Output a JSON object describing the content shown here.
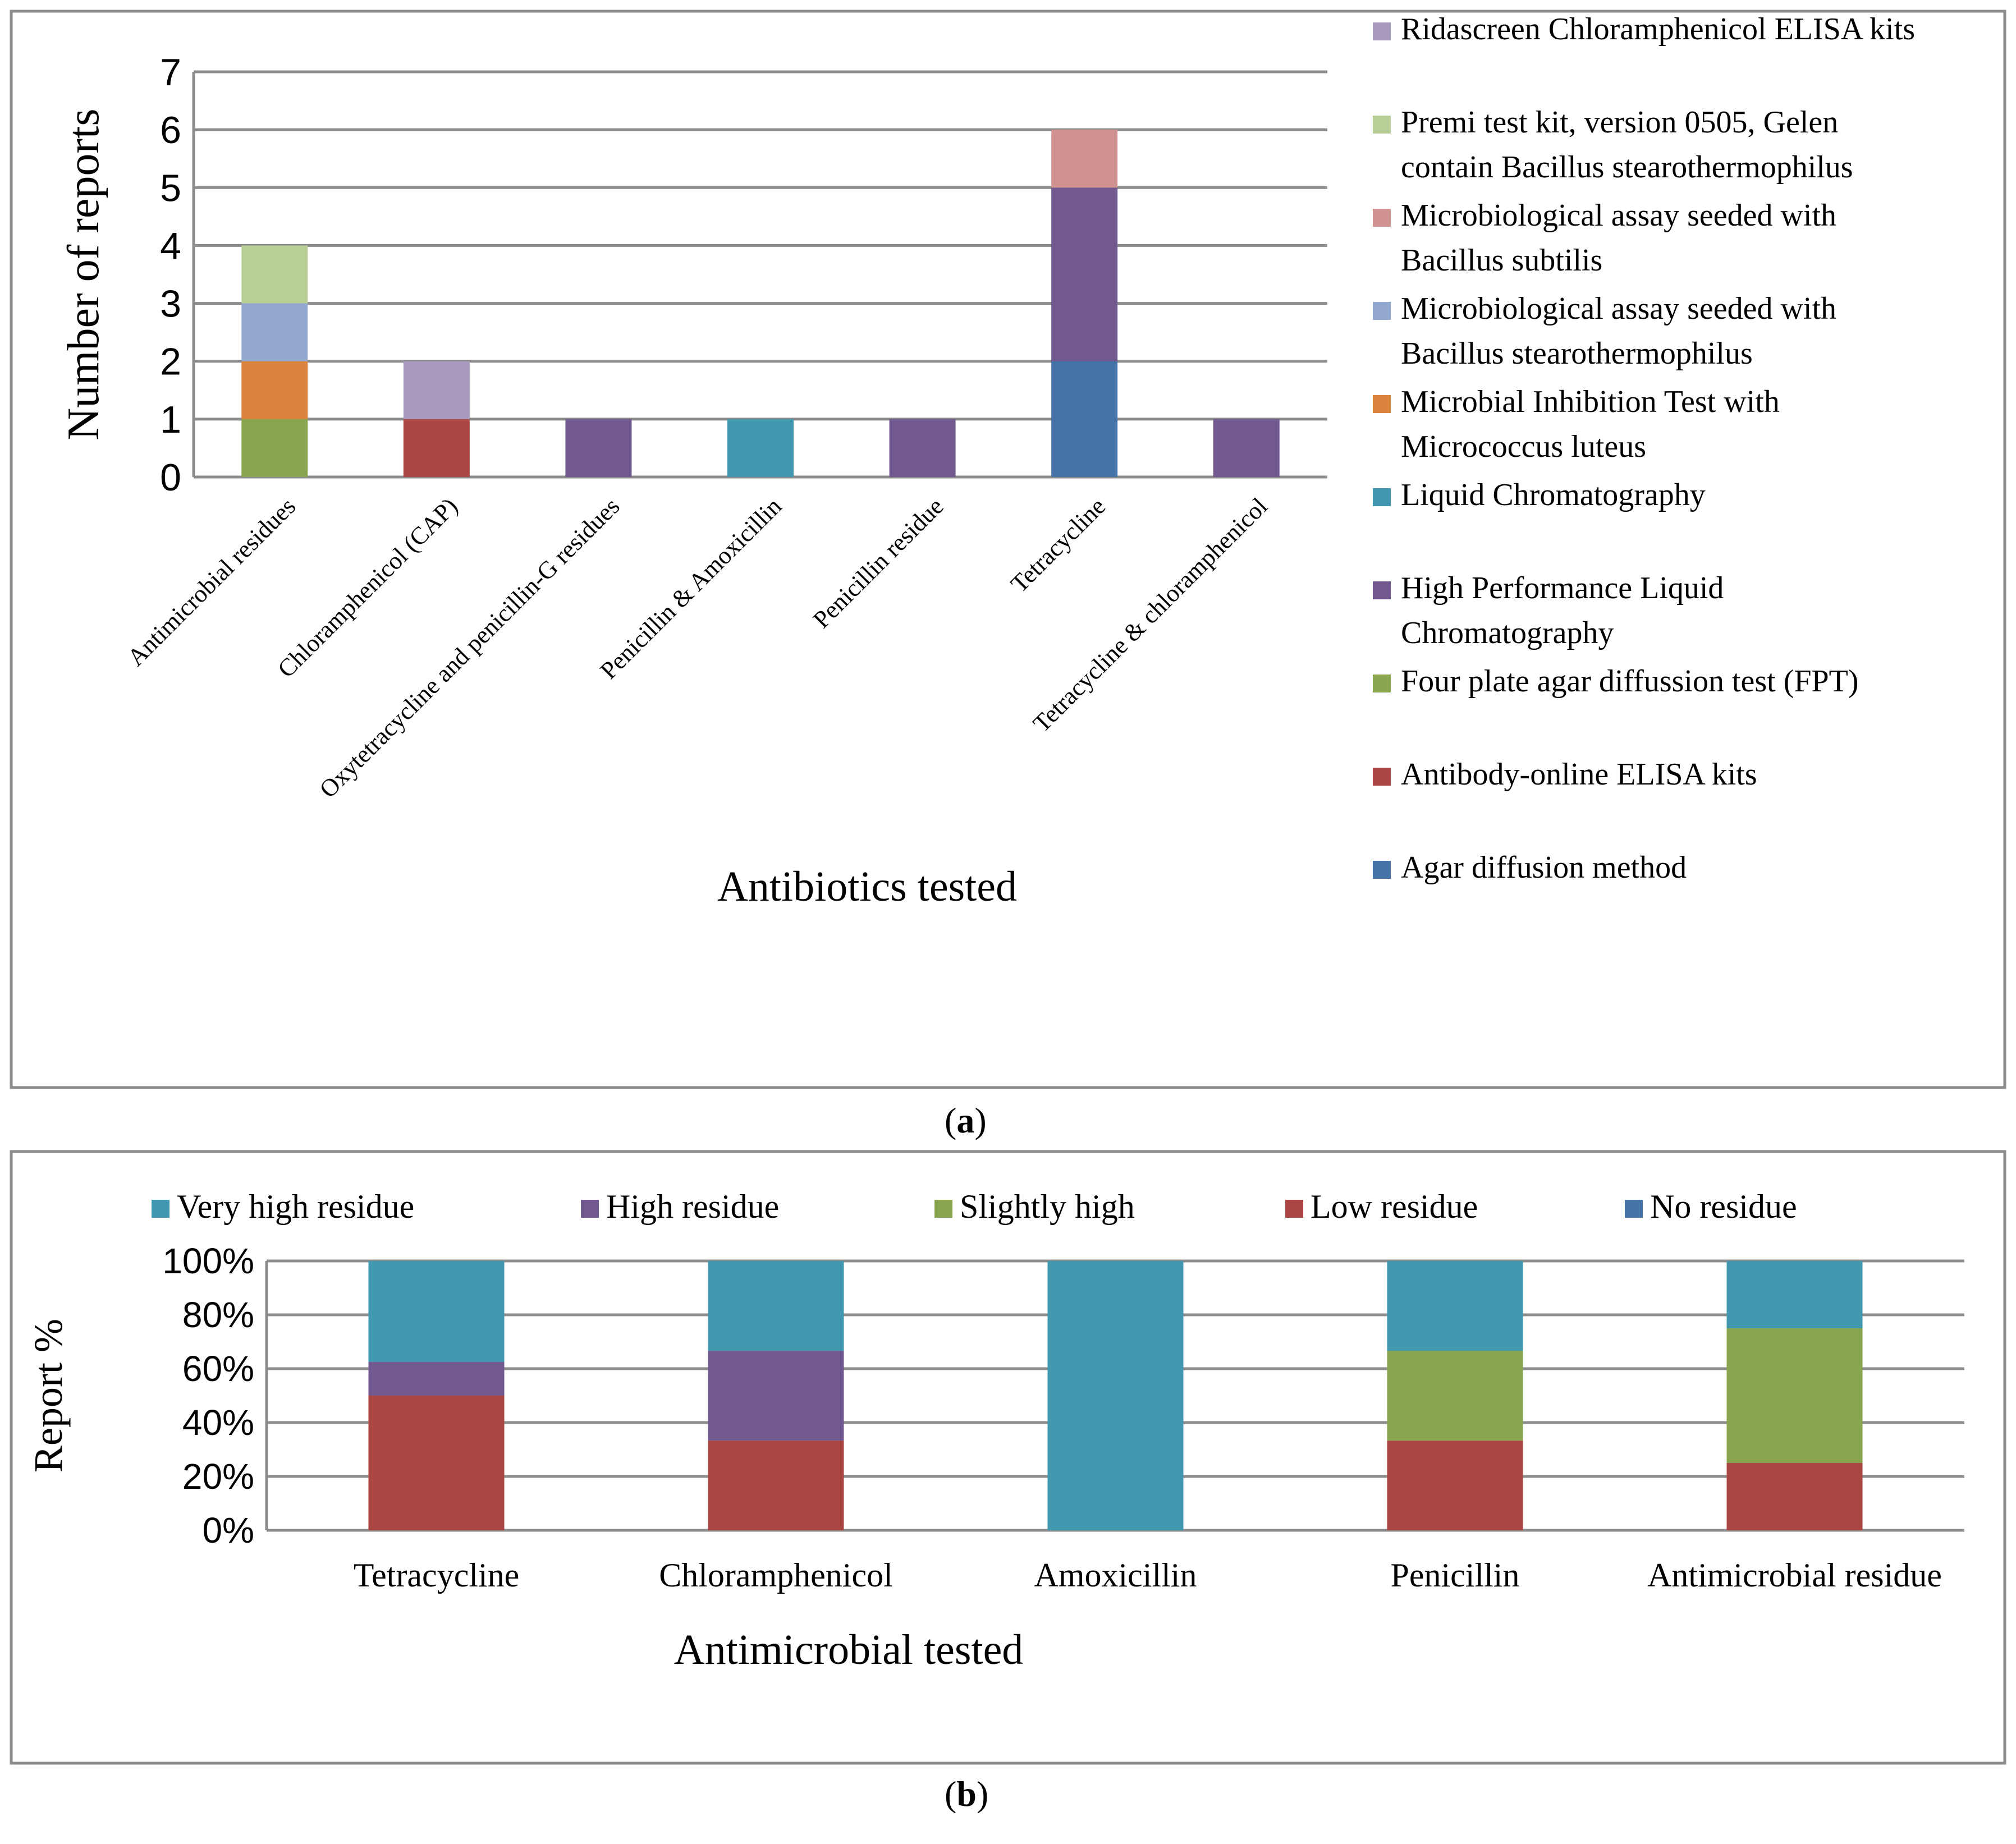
{
  "panel_labels": {
    "a": "a",
    "b": "b"
  },
  "chart_data": [
    {
      "type": "bar",
      "stacked": true,
      "xlabel": "Antibiotics tested",
      "ylabel": "Number of reports",
      "ylim": [
        0,
        7
      ],
      "yticks": [
        "0",
        "1",
        "2",
        "3",
        "4",
        "5",
        "6",
        "7"
      ],
      "legend_position": "right",
      "categories": [
        "Antimicrobial residues",
        "Chloramphenicol  (CAP)",
        "Oxytetracycline and penicillin-G residues",
        "Penicillin & Amoxicillin",
        "Penicillin residue",
        "Tetracycline",
        "Tetracycline & chloramphenicol"
      ],
      "series": [
        {
          "name": "Agar diffusion method",
          "color": "#4572a7",
          "values": [
            0,
            0,
            0,
            0,
            0,
            2,
            0
          ]
        },
        {
          "name": "Antibody-online ELISA kits",
          "color": "#aa4643",
          "values": [
            0,
            1,
            0,
            0,
            0,
            0,
            0
          ]
        },
        {
          "name": "Four plate agar diffussion test (FPT)",
          "color": "#89a54e",
          "values": [
            1,
            0,
            0,
            0,
            0,
            0,
            0
          ]
        },
        {
          "name": "High Performance Liquid Chromatography",
          "color": "#71588f",
          "values": [
            0,
            0,
            1,
            0,
            1,
            3,
            1
          ]
        },
        {
          "name": "Liquid Chromatography",
          "color": "#4198af",
          "values": [
            0,
            0,
            0,
            1,
            0,
            0,
            0
          ]
        },
        {
          "name": "Microbial Inhibition Test  with Micrococcus luteus",
          "color": "#db843d",
          "values": [
            1,
            0,
            0,
            0,
            0,
            0,
            0
          ]
        },
        {
          "name": "Microbiological assay seeded with Bacillus stearothermophilus",
          "color": "#93a9cf",
          "values": [
            1,
            0,
            0,
            0,
            0,
            0,
            0
          ]
        },
        {
          "name": "Microbiological assay seeded with Bacillus subtilis",
          "color": "#d19392",
          "values": [
            0,
            0,
            0,
            0,
            0,
            1,
            0
          ]
        },
        {
          "name": "Premi test kit, version 0505, Gelen contain Bacillus stearothermophilus",
          "color": "#b9cd96",
          "values": [
            1,
            0,
            0,
            0,
            0,
            0,
            0
          ]
        },
        {
          "name": "Ridascreen Chloramphenicol ELISA kits",
          "color": "#a99bbd",
          "values": [
            0,
            1,
            0,
            0,
            0,
            0,
            0
          ]
        }
      ],
      "legend_lines": [
        [
          "Ridascreen Chloramphenicol ELISA kits"
        ],
        [
          "Premi test kit, version 0505, Gelen",
          "contain Bacillus stearothermophilus"
        ],
        [
          "Microbiological assay seeded with",
          "Bacillus subtilis"
        ],
        [
          "Microbiological assay seeded with",
          "Bacillus stearothermophilus"
        ],
        [
          "Microbial Inhibition Test  with",
          "Micrococcus luteus"
        ],
        [
          "Liquid Chromatography"
        ],
        [
          "High Performance Liquid",
          "Chromatography"
        ],
        [
          "Four plate agar diffussion test (FPT)"
        ],
        [
          "Antibody-online ELISA kits"
        ],
        [
          "Agar diffusion method"
        ]
      ]
    },
    {
      "type": "bar",
      "stacked": true,
      "percent": true,
      "xlabel": "Antimicrobial tested",
      "ylabel": "Report %",
      "ylim": [
        0,
        100
      ],
      "yticks": [
        "0%",
        "20%",
        "40%",
        "60%",
        "80%",
        "100%"
      ],
      "legend_position": "top",
      "categories": [
        "Tetracycline",
        "Chloramphenicol",
        "Amoxicillin",
        "Penicillin",
        "Antimicrobial residue"
      ],
      "series": [
        {
          "name": "No residue",
          "color": "#4572a7",
          "values": [
            0,
            0,
            0,
            0,
            0
          ]
        },
        {
          "name": "Low residue",
          "color": "#aa4643",
          "values": [
            50,
            33.3,
            0,
            33.3,
            25
          ]
        },
        {
          "name": "Slightly high",
          "color": "#89a54e",
          "values": [
            0,
            0,
            0,
            33.3,
            50
          ]
        },
        {
          "name": "High residue",
          "color": "#71588f",
          "values": [
            12.5,
            33.3,
            0,
            0,
            0
          ]
        },
        {
          "name": "Very high residue",
          "color": "#4198af",
          "values": [
            37.5,
            33.4,
            100,
            33.4,
            25
          ]
        }
      ],
      "legend_order": [
        "Very high residue",
        "High residue",
        "Slightly high",
        "Low residue",
        "No residue"
      ]
    }
  ]
}
